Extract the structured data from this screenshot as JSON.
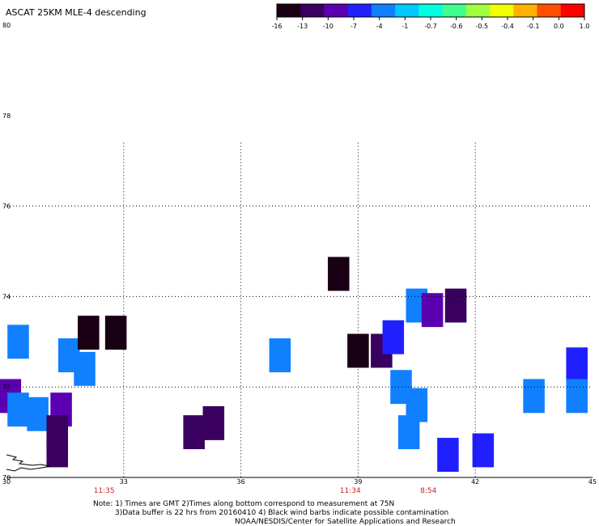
{
  "title": "ASCAT 25KM MLE-4 descending",
  "colorbar": {
    "labels": [
      "-16",
      "-13",
      "-10",
      "-7",
      "-4",
      "-1",
      "-0.7",
      "-0.6",
      "-0.5",
      "-0.4",
      "-0.1",
      "0.0",
      "1.0"
    ],
    "colors": [
      "#1a0014",
      "#3a0060",
      "#5a00b0",
      "#2020ff",
      "#1080ff",
      "#00c8ff",
      "#00ffe0",
      "#40ff90",
      "#a0ff40",
      "#f0ff00",
      "#ffb000",
      "#ff5000",
      "#ff0000"
    ]
  },
  "notes": {
    "line1": "Note: 1) Times are GMT 2)Times along bottom correspond to measurement at 75N",
    "line2": "3)Data buffer is 22 hrs from 20160410 4) Black wind barbs indicate possible contamination",
    "credit": "NOAA/NESDIS/Center for Satellite Applications and Research"
  },
  "chart_data": {
    "type": "heatmap",
    "title": "ASCAT 25KM MLE-4 descending",
    "xlim": [
      30,
      45
    ],
    "ylim": [
      70,
      80
    ],
    "x_ticks": [
      "30",
      "33",
      "36",
      "39",
      "42",
      "45"
    ],
    "y_ticks": [
      "70",
      "72",
      "74",
      "76",
      "78",
      "80"
    ],
    "grid": true,
    "time_labels": [
      {
        "x": 32.5,
        "label": "11:35"
      },
      {
        "x": 38.8,
        "label": "11:34"
      },
      {
        "x": 40.8,
        "label": "8:54"
      }
    ],
    "cells": [
      {
        "lon": 30.3,
        "lat": 73.0,
        "value": -4
      },
      {
        "lon": 31.6,
        "lat": 72.7,
        "value": -4
      },
      {
        "lon": 32.0,
        "lat": 72.4,
        "value": -4
      },
      {
        "lon": 30.1,
        "lat": 71.8,
        "value": -10
      },
      {
        "lon": 30.3,
        "lat": 71.5,
        "value": -4
      },
      {
        "lon": 30.8,
        "lat": 71.4,
        "value": -4
      },
      {
        "lon": 31.4,
        "lat": 71.5,
        "value": -10
      },
      {
        "lon": 31.3,
        "lat": 71.0,
        "value": -13
      },
      {
        "lon": 31.3,
        "lat": 70.6,
        "value": -13
      },
      {
        "lon": 32.1,
        "lat": 73.2,
        "value": -16
      },
      {
        "lon": 32.8,
        "lat": 73.2,
        "value": -16
      },
      {
        "lon": 35.3,
        "lat": 71.2,
        "value": -13
      },
      {
        "lon": 34.8,
        "lat": 71.0,
        "value": -13
      },
      {
        "lon": 37.0,
        "lat": 72.7,
        "value": -4
      },
      {
        "lon": 38.5,
        "lat": 74.5,
        "value": -16
      },
      {
        "lon": 39.0,
        "lat": 72.8,
        "value": -16
      },
      {
        "lon": 39.6,
        "lat": 72.8,
        "value": -13
      },
      {
        "lon": 39.9,
        "lat": 73.1,
        "value": -7
      },
      {
        "lon": 40.1,
        "lat": 72.0,
        "value": -4
      },
      {
        "lon": 40.5,
        "lat": 71.6,
        "value": -4
      },
      {
        "lon": 40.3,
        "lat": 71.0,
        "value": -4
      },
      {
        "lon": 40.5,
        "lat": 73.8,
        "value": -4
      },
      {
        "lon": 40.9,
        "lat": 73.7,
        "value": -10
      },
      {
        "lon": 41.5,
        "lat": 73.8,
        "value": -13
      },
      {
        "lon": 41.3,
        "lat": 70.5,
        "value": -7
      },
      {
        "lon": 42.2,
        "lat": 70.6,
        "value": -7
      },
      {
        "lon": 43.5,
        "lat": 71.8,
        "value": -4
      },
      {
        "lon": 44.6,
        "lat": 72.5,
        "value": -7
      },
      {
        "lon": 44.6,
        "lat": 71.8,
        "value": -4
      }
    ]
  }
}
